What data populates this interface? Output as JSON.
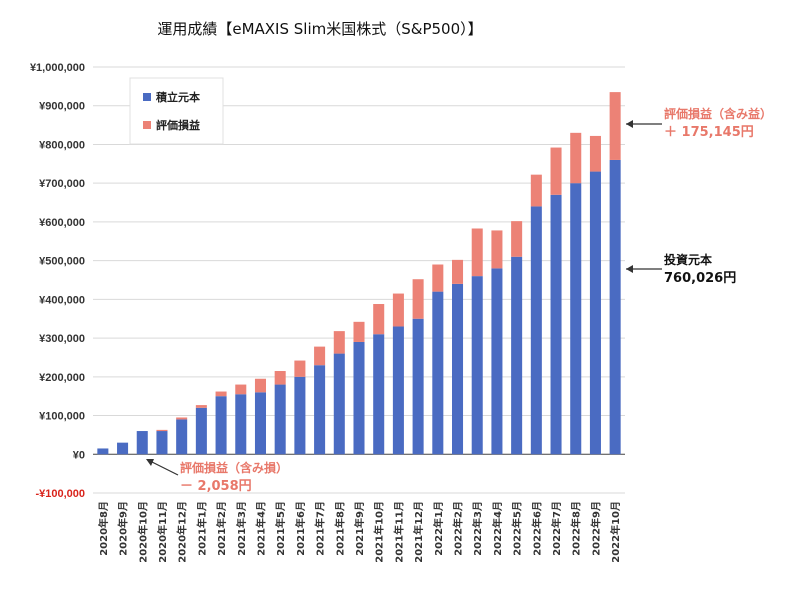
{
  "colors": {
    "principal": "#4a6bc2",
    "gain": "#ec8276",
    "grid": "#d9d9d9",
    "axis": "#444444",
    "negative_label": "#d9241c",
    "annotation_gain": "#e8786a",
    "annotation_dark": "#111111"
  },
  "chart_data": {
    "type": "bar",
    "stacked": true,
    "title": "運用成績【eMAXIS Slim米国株式（S&P500）】",
    "ylim": [
      -100000,
      1000000
    ],
    "yticks": [
      {
        "value": 1000000,
        "label": "¥1,000,000"
      },
      {
        "value": 900000,
        "label": "¥900,000"
      },
      {
        "value": 800000,
        "label": "¥800,000"
      },
      {
        "value": 700000,
        "label": "¥700,000"
      },
      {
        "value": 600000,
        "label": "¥600,000"
      },
      {
        "value": 500000,
        "label": "¥500,000"
      },
      {
        "value": 400000,
        "label": "¥400,000"
      },
      {
        "value": 300000,
        "label": "¥300,000"
      },
      {
        "value": 200000,
        "label": "¥200,000"
      },
      {
        "value": 100000,
        "label": "¥100,000"
      },
      {
        "value": 0,
        "label": "¥0"
      },
      {
        "value": -100000,
        "label": "-¥100,000"
      }
    ],
    "grid": true,
    "legend_position": "top-left",
    "categories": [
      "2020年8月",
      "2020年9月",
      "2020年10月",
      "2020年11月",
      "2020年12月",
      "2021年1月",
      "2021年2月",
      "2021年3月",
      "2021年4月",
      "2021年5月",
      "2021年6月",
      "2021年7月",
      "2021年8月",
      "2021年9月",
      "2021年10月",
      "2021年11月",
      "2021年12月",
      "2022年1月",
      "2022年2月",
      "2022年3月",
      "2022年4月",
      "2022年5月",
      "2022年6月",
      "2022年7月",
      "2022年8月",
      "2022年9月",
      "2022年10月"
    ],
    "series": [
      {
        "name": "積立元本",
        "color": "#4a6bc2",
        "values": [
          15000,
          30000,
          60000,
          60000,
          90000,
          120000,
          150000,
          155000,
          160000,
          180000,
          200000,
          230000,
          260000,
          290000,
          310000,
          330000,
          350000,
          420000,
          440000,
          460000,
          480000,
          510000,
          640000,
          670000,
          700000,
          730000,
          760026
        ]
      },
      {
        "name": "評価損益",
        "color": "#ec8276",
        "values": [
          0,
          0,
          -2058,
          3000,
          5000,
          7000,
          12000,
          25000,
          35000,
          35000,
          42000,
          48000,
          58000,
          52000,
          78000,
          85000,
          102000,
          70000,
          62000,
          123000,
          98000,
          92000,
          82000,
          122000,
          130000,
          92000,
          175145
        ]
      }
    ]
  },
  "annotations": {
    "gain_title": "評価損益（含み益）",
    "gain_value": "＋ 175,145円",
    "principal_title": "投資元本",
    "principal_value": "760,026円",
    "loss_title": "評価損益（含み損）",
    "loss_value": "－ 2,058円"
  }
}
